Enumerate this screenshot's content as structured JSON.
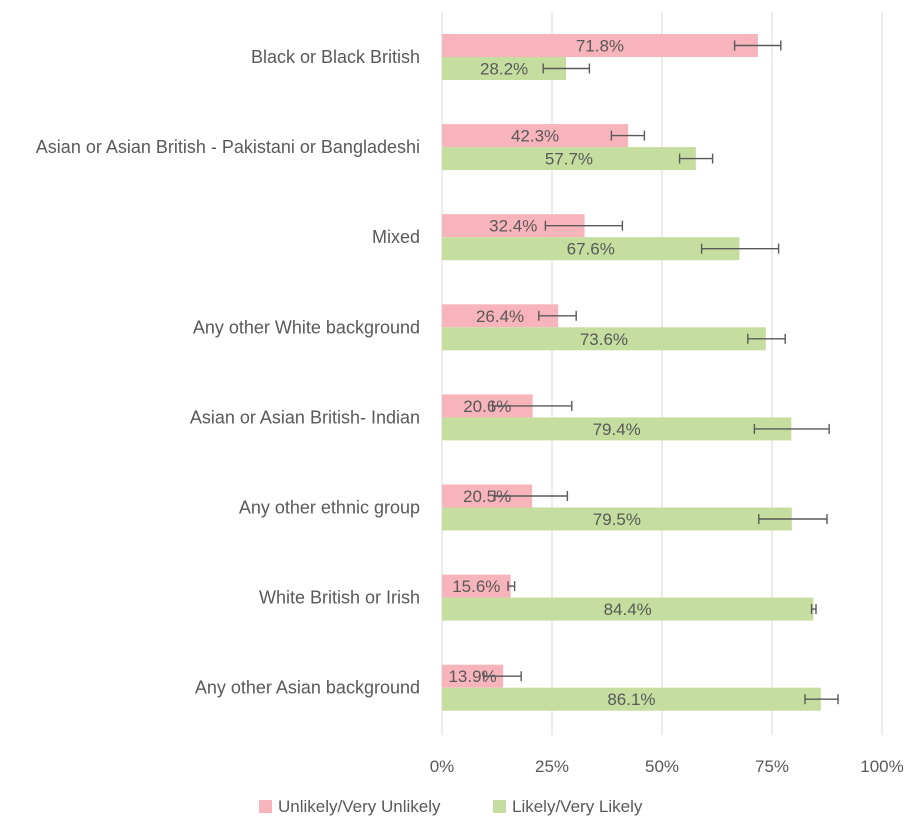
{
  "chart_data": {
    "type": "bar",
    "orientation": "horizontal",
    "categories": [
      "Black or Black British",
      "Asian or Asian British - Pakistani or Bangladeshi",
      "Mixed",
      "Any other White background",
      "Asian or Asian British- Indian",
      "Any other ethnic group",
      "White British or Irish",
      "Any other Asian background"
    ],
    "series": [
      {
        "name": "Unlikely/Very Unlikely",
        "color": "#f8b4bb",
        "values": [
          71.8,
          42.3,
          32.4,
          26.4,
          20.6,
          20.5,
          15.6,
          13.9
        ],
        "labels": [
          "71.8%",
          "42.3%",
          "32.4%",
          "26.4%",
          "20.6%",
          "20.5%",
          "15.6%",
          "13.9%"
        ],
        "error_low": [
          66.5,
          38.5,
          23.5,
          22.0,
          11.5,
          12.0,
          15.0,
          9.5
        ],
        "error_high": [
          77.0,
          46.0,
          41.0,
          30.5,
          29.5,
          28.5,
          16.5,
          18.0
        ]
      },
      {
        "name": "Likely/Very Likely",
        "color": "#c5dea0",
        "values": [
          28.2,
          57.7,
          67.6,
          73.6,
          79.4,
          79.5,
          84.4,
          86.1
        ],
        "labels": [
          "28.2%",
          "57.7%",
          "67.6%",
          "73.6%",
          "79.4%",
          "79.5%",
          "84.4%",
          "86.1%"
        ],
        "error_low": [
          23.0,
          54.0,
          59.0,
          69.5,
          71.0,
          72.0,
          84.0,
          82.5
        ],
        "error_high": [
          33.5,
          61.5,
          76.5,
          78.0,
          88.0,
          87.5,
          85.0,
          90.0
        ]
      }
    ],
    "xlim": [
      0,
      100
    ],
    "x_ticks": [
      0,
      25,
      50,
      75,
      100
    ],
    "x_tick_labels": [
      "0%",
      "25%",
      "50%",
      "75%",
      "100%"
    ],
    "grid": true,
    "legend_position": "bottom",
    "title": "",
    "xlabel": "",
    "ylabel": ""
  }
}
